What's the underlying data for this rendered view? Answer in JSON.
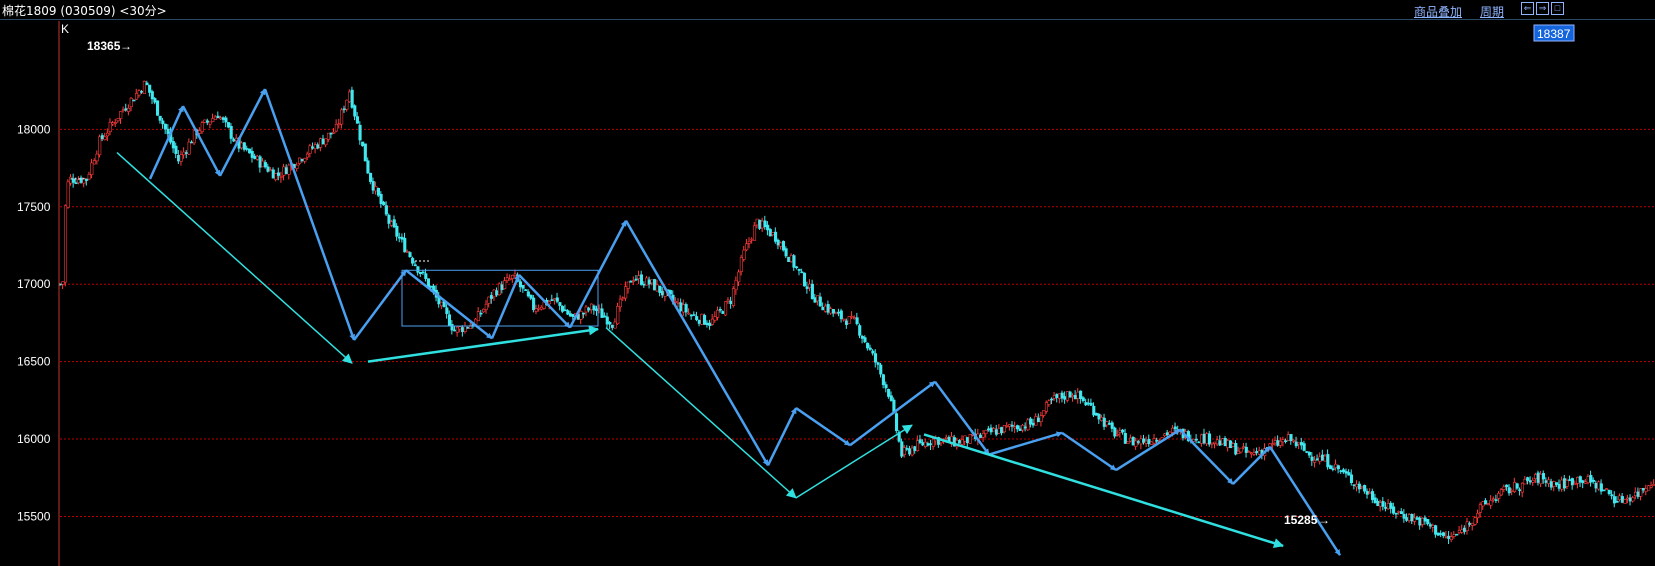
{
  "window": {
    "title": "棉花1809 (030509) <30分>",
    "overlay_label": "商品叠加",
    "period_label": "周期",
    "btn_prev": "⇐",
    "btn_next": "⇒",
    "btn_max": "□"
  },
  "panel_label": "K",
  "current_price": "18387",
  "markers": {
    "high": "18365",
    "low": "15285"
  },
  "chart_data": {
    "type": "candlestick",
    "y_ticks": [
      15500,
      16000,
      16500,
      17000,
      17500,
      18000
    ],
    "ylim": [
      15180,
      18700
    ],
    "grid": "horizontal dotted red",
    "colors": {
      "up": "#ff3b3b",
      "down": "#42e8f0",
      "grid": "#c00000",
      "wave_arrow": "#4aa0f0",
      "trend_arrow": "#30e0e0",
      "axis": "#c83232"
    },
    "highlight_price": 18387,
    "high": 18365,
    "low": 15285,
    "close_path": [
      [
        0,
        17000
      ],
      [
        2,
        17020
      ],
      [
        4,
        17500
      ],
      [
        6,
        17650
      ],
      [
        8,
        17680
      ],
      [
        10,
        17680
      ],
      [
        20,
        17680
      ],
      [
        30,
        17920
      ],
      [
        45,
        18100
      ],
      [
        55,
        18200
      ],
      [
        65,
        18300
      ],
      [
        75,
        18100
      ],
      [
        90,
        17800
      ],
      [
        105,
        18000
      ],
      [
        120,
        18100
      ],
      [
        135,
        17900
      ],
      [
        150,
        17800
      ],
      [
        165,
        17700
      ],
      [
        180,
        17800
      ],
      [
        195,
        17900
      ],
      [
        210,
        18000
      ],
      [
        220,
        18250
      ],
      [
        235,
        17700
      ],
      [
        250,
        17400
      ],
      [
        265,
        17200
      ],
      [
        280,
        17000
      ],
      [
        290,
        16850
      ],
      [
        300,
        16700
      ],
      [
        315,
        16750
      ],
      [
        330,
        16950
      ],
      [
        345,
        17050
      ],
      [
        360,
        16850
      ],
      [
        375,
        16900
      ],
      [
        390,
        16780
      ],
      [
        405,
        16850
      ],
      [
        420,
        16750
      ],
      [
        435,
        17050
      ],
      [
        450,
        17000
      ],
      [
        465,
        16900
      ],
      [
        480,
        16800
      ],
      [
        495,
        16750
      ],
      [
        510,
        16900
      ],
      [
        520,
        17200
      ],
      [
        530,
        17400
      ],
      [
        545,
        17300
      ],
      [
        560,
        17100
      ],
      [
        575,
        16900
      ],
      [
        590,
        16800
      ],
      [
        605,
        16750
      ],
      [
        620,
        16500
      ],
      [
        630,
        16300
      ],
      [
        640,
        15900
      ],
      [
        650,
        15950
      ],
      [
        665,
        16000
      ],
      [
        680,
        15980
      ],
      [
        695,
        16000
      ],
      [
        710,
        16050
      ],
      [
        725,
        16080
      ],
      [
        740,
        16100
      ],
      [
        755,
        16250
      ],
      [
        770,
        16300
      ],
      [
        785,
        16200
      ],
      [
        800,
        16050
      ],
      [
        815,
        15980
      ],
      [
        830,
        16000
      ],
      [
        845,
        16050
      ],
      [
        860,
        16020
      ],
      [
        875,
        16000
      ],
      [
        890,
        15950
      ],
      [
        905,
        15900
      ],
      [
        920,
        15950
      ],
      [
        935,
        16000
      ],
      [
        950,
        15900
      ],
      [
        965,
        15850
      ],
      [
        980,
        15750
      ],
      [
        995,
        15650
      ],
      [
        1010,
        15550
      ],
      [
        1025,
        15500
      ],
      [
        1040,
        15450
      ],
      [
        1055,
        15350
      ],
      [
        1065,
        15400
      ],
      [
        1080,
        15550
      ],
      [
        1095,
        15650
      ],
      [
        1110,
        15700
      ],
      [
        1125,
        15750
      ],
      [
        1140,
        15700
      ],
      [
        1155,
        15750
      ],
      [
        1170,
        15700
      ],
      [
        1185,
        15600
      ],
      [
        1200,
        15650
      ],
      [
        1213,
        15750
      ]
    ],
    "wave_arrows": [
      [
        [
          150,
          17680
        ],
        [
          183,
          18150
        ]
      ],
      [
        [
          183,
          18150
        ],
        [
          220,
          17700
        ]
      ],
      [
        [
          220,
          17700
        ],
        [
          265,
          18260
        ]
      ],
      [
        [
          265,
          18260
        ],
        [
          354,
          16640
        ]
      ],
      [
        [
          354,
          16640
        ],
        [
          406,
          17090
        ]
      ],
      [
        [
          406,
          17090
        ],
        [
          492,
          16650
        ]
      ],
      [
        [
          492,
          16650
        ],
        [
          519,
          17060
        ]
      ],
      [
        [
          519,
          17060
        ],
        [
          570,
          16720
        ]
      ],
      [
        [
          570,
          16720
        ],
        [
          626,
          17410
        ]
      ],
      [
        [
          626,
          17410
        ],
        [
          768,
          15830
        ]
      ],
      [
        [
          768,
          15830
        ],
        [
          796,
          16200
        ]
      ],
      [
        [
          796,
          16200
        ],
        [
          850,
          15960
        ]
      ],
      [
        [
          850,
          15960
        ],
        [
          935,
          16370
        ]
      ],
      [
        [
          935,
          16370
        ],
        [
          989,
          15900
        ]
      ],
      [
        [
          989,
          15900
        ],
        [
          1062,
          16040
        ]
      ],
      [
        [
          1062,
          16040
        ],
        [
          1116,
          15800
        ]
      ],
      [
        [
          1116,
          15800
        ],
        [
          1180,
          16060
        ]
      ],
      [
        [
          1180,
          16060
        ],
        [
          1233,
          15710
        ]
      ],
      [
        [
          1233,
          15710
        ],
        [
          1270,
          15950
        ]
      ],
      [
        [
          1270,
          15950
        ],
        [
          1340,
          15250
        ]
      ]
    ],
    "trend_arrows": [
      [
        [
          117,
          17850
        ],
        [
          352,
          16490
        ]
      ],
      [
        [
          368,
          16500
        ],
        [
          598,
          16710
        ]
      ],
      [
        [
          606,
          16720
        ],
        [
          796,
          15620
        ]
      ],
      [
        [
          796,
          15620
        ],
        [
          912,
          16090
        ]
      ],
      [
        [
          924,
          16030
        ],
        [
          1283,
          15310
        ]
      ]
    ],
    "consolidation_box": {
      "x": [
        402,
        598
      ],
      "y": [
        16730,
        17090
      ]
    }
  }
}
